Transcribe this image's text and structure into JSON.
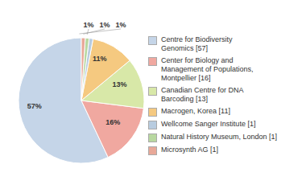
{
  "chart_data": {
    "type": "pie",
    "categories": [
      "Centre for Biodiversity\nGenomics [57]",
      "Center for Biology and\nManagement of Populations,\nMontpellier [16]",
      "Canadian Centre for DNA\nBarcoding [13]",
      "Macrogen, Korea [11]",
      "Wellcome Sanger Institute [1]",
      "Natural History Museum, London [1]",
      "Microsynth AG [1]"
    ],
    "values": [
      57,
      16,
      13,
      11,
      1,
      1,
      1
    ],
    "value_labels": [
      "57%",
      "16%",
      "13%",
      "11%",
      "1%",
      "1%",
      "1%"
    ],
    "colors": [
      "#c5d5e8",
      "#f0a8a0",
      "#d8e8a8",
      "#f5c980",
      "#b8cce0",
      "#b8d8a0",
      "#e8a898"
    ],
    "data_labels": true,
    "legend": "right"
  }
}
